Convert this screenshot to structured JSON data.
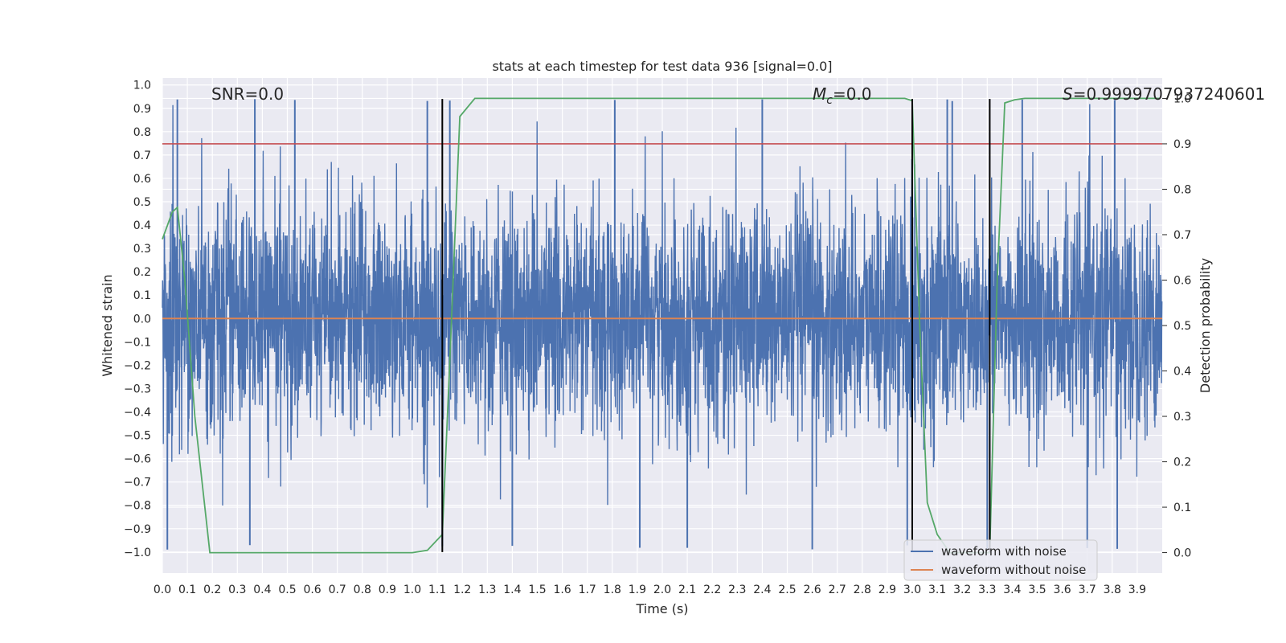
{
  "chart_data": {
    "type": "line",
    "title": "stats at each timestep for test data 936 [signal=0.0]",
    "xlabel": "Time (s)",
    "ylabel": "Whitened strain",
    "y2label": "Detection probability",
    "xlim": [
      0.0,
      4.0
    ],
    "ylim": [
      -1.09,
      1.03
    ],
    "y2lim": [
      -0.045,
      1.045
    ],
    "xticks": [
      0.0,
      0.1,
      0.2,
      0.3,
      0.4,
      0.5,
      0.6,
      0.7,
      0.8,
      0.9,
      1.0,
      1.1,
      1.2,
      1.3,
      1.4,
      1.5,
      1.6,
      1.7,
      1.8,
      1.9,
      2.0,
      2.1,
      2.2,
      2.3,
      2.4,
      2.5,
      2.6,
      2.7,
      2.8,
      2.9,
      3.0,
      3.1,
      3.2,
      3.3,
      3.4,
      3.5,
      3.6,
      3.7,
      3.8,
      3.9
    ],
    "xtick_labels": [
      "0.0",
      "0.1",
      "0.2",
      "0.3",
      "0.4",
      "0.5",
      "0.6",
      "0.7",
      "0.8",
      "0.9",
      "1.0",
      "1.1",
      "1.2",
      "1.3",
      "1.4",
      "1.5",
      "1.6",
      "1.7",
      "1.8",
      "1.9",
      "2.0",
      "2.1",
      "2.2",
      "2.3",
      "2.4",
      "2.5",
      "2.6",
      "2.7",
      "2.8",
      "2.9",
      "3.0",
      "3.1",
      "3.2",
      "3.3",
      "3.4",
      "3.5",
      "3.6",
      "3.7",
      "3.8",
      "3.9"
    ],
    "yticks": [
      1.0,
      0.9,
      0.8,
      0.7,
      0.6,
      0.5,
      0.4,
      0.3,
      0.2,
      0.1,
      0.0,
      -0.1,
      -0.2,
      -0.3,
      -0.4,
      -0.5,
      -0.6,
      -0.7,
      -0.8,
      -0.9,
      -1.0
    ],
    "ytick_labels": [
      "1.0",
      "0.9",
      "0.8",
      "0.7",
      "0.6",
      "0.5",
      "0.4",
      "0.3",
      "0.2",
      "0.1",
      "0.0",
      "−0.1",
      "−0.2",
      "−0.3",
      "−0.4",
      "−0.5",
      "−0.6",
      "−0.7",
      "−0.8",
      "−0.9",
      "−1.0"
    ],
    "y2ticks": [
      0.0,
      0.1,
      0.2,
      0.3,
      0.4,
      0.5,
      0.6,
      0.7,
      0.8,
      0.9,
      1.0
    ],
    "y2tick_labels": [
      "0.0",
      "0.1",
      "0.2",
      "0.3",
      "0.4",
      "0.5",
      "0.6",
      "0.7",
      "0.8",
      "0.9",
      "1.0"
    ],
    "series": [
      {
        "name": "waveform with noise",
        "color": "#4c72b0",
        "kind": "noise",
        "samples": 4096,
        "abs_max": 1.0,
        "positive_spike_times": [
          0.06,
          0.37,
          0.53,
          1.06,
          1.15,
          1.81,
          2.4,
          3.14,
          3.16,
          3.44,
          3.81
        ],
        "negative_spike_times": [
          0.02,
          0.35,
          1.12,
          1.4,
          1.91,
          2.1,
          2.6,
          2.98,
          3.3,
          3.7,
          3.82
        ]
      },
      {
        "name": "waveform without noise",
        "color": "#dd8452",
        "kind": "constant",
        "x": [
          0.0,
          4.0
        ],
        "y": [
          0.0,
          0.0
        ]
      },
      {
        "name": "detection probability",
        "color": "#55a868",
        "axis": "y2",
        "x": [
          0.0,
          0.02,
          0.04,
          0.06,
          0.09,
          0.13,
          0.19,
          0.25,
          0.5,
          1.0,
          1.06,
          1.12,
          1.15,
          1.19,
          1.25,
          1.5,
          2.0,
          2.97,
          3.0,
          3.03,
          3.06,
          3.1,
          3.15,
          3.2,
          3.25,
          3.31,
          3.34,
          3.37,
          3.41,
          3.45,
          3.9,
          3.99
        ],
        "y": [
          0.69,
          0.72,
          0.75,
          0.76,
          0.6,
          0.3,
          0.0,
          0.0,
          0.0,
          0.0,
          0.005,
          0.04,
          0.42,
          0.96,
          1.0,
          1.0,
          1.0,
          1.0,
          0.995,
          0.5,
          0.11,
          0.04,
          0.0,
          0.0,
          0.0,
          0.0,
          0.6,
          0.99,
          0.997,
          1.0,
          1.0,
          1.0
        ]
      }
    ],
    "threshold": {
      "value": 0.9,
      "axis": "y2",
      "color": "#c44e52"
    },
    "vlines": [
      1.12,
      3.0,
      3.31
    ],
    "vline_color": "#000000",
    "vline_range": [
      -1.0,
      0.94
    ],
    "annotations": {
      "snr": "SNR=0.0",
      "mc_symbol": "M",
      "mc_sub": "c",
      "mc_value": "=0.0",
      "s_symbol": "S",
      "s_value": "=0.9999707937240601"
    },
    "legend": {
      "position": "bottom-right",
      "entries": [
        {
          "label": "waveform with noise",
          "color": "#4c72b0"
        },
        {
          "label": "waveform without noise",
          "color": "#dd8452"
        }
      ]
    },
    "grid": true,
    "background": "#eaeaf2"
  }
}
